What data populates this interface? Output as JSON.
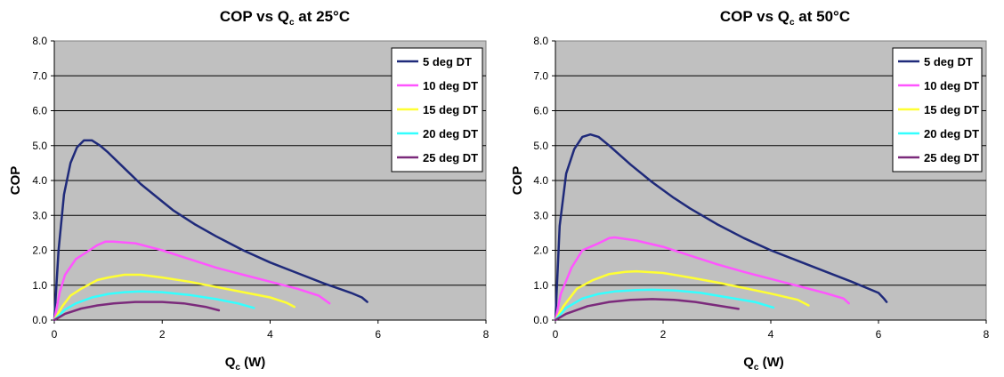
{
  "chart_data": [
    {
      "type": "line",
      "title": "COP vs Q",
      "title_sub": "c",
      "title_suffix": " at 25°C",
      "xlabel": "Q",
      "xlabel_sub": "c",
      "xlabel_suffix": " (W)",
      "ylabel": "COP",
      "xlim": [
        0,
        8
      ],
      "ylim": [
        0,
        8
      ],
      "xticks": [
        "0",
        "2",
        "4",
        "6",
        "8"
      ],
      "yticks": [
        "0.0",
        "1.0",
        "2.0",
        "3.0",
        "4.0",
        "5.0",
        "6.0",
        "7.0",
        "8.0"
      ],
      "grid": true,
      "legend_position": "top-right",
      "series": [
        {
          "name": "5 deg DT",
          "color": "#1f2a7a",
          "points": [
            [
              0,
              0
            ],
            [
              0.08,
              2.0
            ],
            [
              0.18,
              3.6
            ],
            [
              0.3,
              4.5
            ],
            [
              0.42,
              4.95
            ],
            [
              0.55,
              5.15
            ],
            [
              0.7,
              5.15
            ],
            [
              0.85,
              5.0
            ],
            [
              1.0,
              4.8
            ],
            [
              1.3,
              4.35
            ],
            [
              1.6,
              3.9
            ],
            [
              2.0,
              3.4
            ],
            [
              2.2,
              3.15
            ],
            [
              2.6,
              2.75
            ],
            [
              3.0,
              2.4
            ],
            [
              3.5,
              2.0
            ],
            [
              4.0,
              1.65
            ],
            [
              4.5,
              1.35
            ],
            [
              5.0,
              1.05
            ],
            [
              5.5,
              0.78
            ],
            [
              5.7,
              0.65
            ],
            [
              5.8,
              0.52
            ]
          ]
        },
        {
          "name": "10 deg DT",
          "color": "#ff55ff",
          "points": [
            [
              0,
              0
            ],
            [
              0.1,
              0.8
            ],
            [
              0.2,
              1.3
            ],
            [
              0.4,
              1.75
            ],
            [
              0.6,
              1.95
            ],
            [
              0.8,
              2.15
            ],
            [
              0.95,
              2.25
            ],
            [
              1.1,
              2.25
            ],
            [
              1.5,
              2.2
            ],
            [
              2.0,
              2.0
            ],
            [
              2.5,
              1.75
            ],
            [
              3.0,
              1.5
            ],
            [
              3.5,
              1.3
            ],
            [
              4.0,
              1.1
            ],
            [
              4.5,
              0.9
            ],
            [
              4.9,
              0.7
            ],
            [
              5.1,
              0.48
            ]
          ]
        },
        {
          "name": "15 deg DT",
          "color": "#ffff33",
          "points": [
            [
              0,
              0
            ],
            [
              0.15,
              0.4
            ],
            [
              0.3,
              0.7
            ],
            [
              0.5,
              0.9
            ],
            [
              0.8,
              1.15
            ],
            [
              1.0,
              1.22
            ],
            [
              1.3,
              1.3
            ],
            [
              1.6,
              1.3
            ],
            [
              2.0,
              1.22
            ],
            [
              2.5,
              1.1
            ],
            [
              3.0,
              0.95
            ],
            [
              3.5,
              0.8
            ],
            [
              4.0,
              0.65
            ],
            [
              4.3,
              0.5
            ],
            [
              4.45,
              0.38
            ]
          ]
        },
        {
          "name": "20 deg DT",
          "color": "#33ffff",
          "points": [
            [
              0,
              0
            ],
            [
              0.2,
              0.3
            ],
            [
              0.4,
              0.48
            ],
            [
              0.7,
              0.65
            ],
            [
              1.0,
              0.75
            ],
            [
              1.3,
              0.8
            ],
            [
              1.6,
              0.82
            ],
            [
              2.0,
              0.8
            ],
            [
              2.5,
              0.72
            ],
            [
              3.0,
              0.6
            ],
            [
              3.4,
              0.48
            ],
            [
              3.7,
              0.35
            ]
          ]
        },
        {
          "name": "25 deg DT",
          "color": "#7b2a7b",
          "points": [
            [
              0,
              0
            ],
            [
              0.2,
              0.18
            ],
            [
              0.5,
              0.33
            ],
            [
              0.8,
              0.42
            ],
            [
              1.1,
              0.48
            ],
            [
              1.5,
              0.52
            ],
            [
              2.0,
              0.52
            ],
            [
              2.4,
              0.48
            ],
            [
              2.8,
              0.38
            ],
            [
              3.05,
              0.28
            ]
          ]
        }
      ]
    },
    {
      "type": "line",
      "title": "COP vs Q",
      "title_sub": "c",
      "title_suffix": " at 50°C",
      "xlabel": "Q",
      "xlabel_sub": "c",
      "xlabel_suffix": " (W)",
      "ylabel": "COP",
      "xlim": [
        0,
        8
      ],
      "ylim": [
        0,
        8
      ],
      "xticks": [
        "0",
        "2",
        "4",
        "6",
        "8"
      ],
      "yticks": [
        "0.0",
        "1.0",
        "2.0",
        "3.0",
        "4.0",
        "5.0",
        "6.0",
        "7.0",
        "8.0"
      ],
      "grid": true,
      "legend_position": "top-right",
      "series": [
        {
          "name": "5 deg DT",
          "color": "#1f2a7a",
          "points": [
            [
              0,
              0
            ],
            [
              0.08,
              2.7
            ],
            [
              0.2,
              4.2
            ],
            [
              0.35,
              4.9
            ],
            [
              0.5,
              5.25
            ],
            [
              0.65,
              5.32
            ],
            [
              0.8,
              5.25
            ],
            [
              1.0,
              5.0
            ],
            [
              1.4,
              4.45
            ],
            [
              1.8,
              3.95
            ],
            [
              2.2,
              3.5
            ],
            [
              2.5,
              3.2
            ],
            [
              3.0,
              2.75
            ],
            [
              3.5,
              2.35
            ],
            [
              4.0,
              2.0
            ],
            [
              4.5,
              1.7
            ],
            [
              5.0,
              1.4
            ],
            [
              5.5,
              1.1
            ],
            [
              6.0,
              0.78
            ],
            [
              6.1,
              0.62
            ],
            [
              6.15,
              0.52
            ]
          ]
        },
        {
          "name": "10 deg DT",
          "color": "#ff55ff",
          "points": [
            [
              0,
              0
            ],
            [
              0.1,
              0.75
            ],
            [
              0.3,
              1.5
            ],
            [
              0.5,
              2.0
            ],
            [
              0.8,
              2.2
            ],
            [
              1.0,
              2.35
            ],
            [
              1.1,
              2.37
            ],
            [
              1.5,
              2.28
            ],
            [
              2.0,
              2.1
            ],
            [
              2.5,
              1.85
            ],
            [
              3.0,
              1.6
            ],
            [
              3.5,
              1.38
            ],
            [
              4.0,
              1.18
            ],
            [
              4.5,
              0.98
            ],
            [
              5.0,
              0.78
            ],
            [
              5.35,
              0.62
            ],
            [
              5.45,
              0.48
            ]
          ]
        },
        {
          "name": "15 deg DT",
          "color": "#ffff33",
          "points": [
            [
              0,
              0
            ],
            [
              0.15,
              0.4
            ],
            [
              0.4,
              0.9
            ],
            [
              0.7,
              1.15
            ],
            [
              1.0,
              1.32
            ],
            [
              1.3,
              1.38
            ],
            [
              1.5,
              1.4
            ],
            [
              2.0,
              1.35
            ],
            [
              2.5,
              1.22
            ],
            [
              3.0,
              1.08
            ],
            [
              3.5,
              0.92
            ],
            [
              4.0,
              0.76
            ],
            [
              4.5,
              0.58
            ],
            [
              4.7,
              0.42
            ]
          ]
        },
        {
          "name": "20 deg DT",
          "color": "#33ffff",
          "points": [
            [
              0,
              0
            ],
            [
              0.2,
              0.35
            ],
            [
              0.5,
              0.62
            ],
            [
              0.8,
              0.75
            ],
            [
              1.1,
              0.82
            ],
            [
              1.5,
              0.86
            ],
            [
              1.8,
              0.87
            ],
            [
              2.2,
              0.85
            ],
            [
              2.7,
              0.78
            ],
            [
              3.2,
              0.65
            ],
            [
              3.7,
              0.52
            ],
            [
              4.05,
              0.36
            ]
          ]
        },
        {
          "name": "25 deg DT",
          "color": "#7b2a7b",
          "points": [
            [
              0,
              0
            ],
            [
              0.2,
              0.18
            ],
            [
              0.6,
              0.4
            ],
            [
              1.0,
              0.52
            ],
            [
              1.4,
              0.58
            ],
            [
              1.8,
              0.6
            ],
            [
              2.2,
              0.58
            ],
            [
              2.6,
              0.52
            ],
            [
              3.0,
              0.42
            ],
            [
              3.4,
              0.32
            ]
          ]
        }
      ]
    }
  ]
}
